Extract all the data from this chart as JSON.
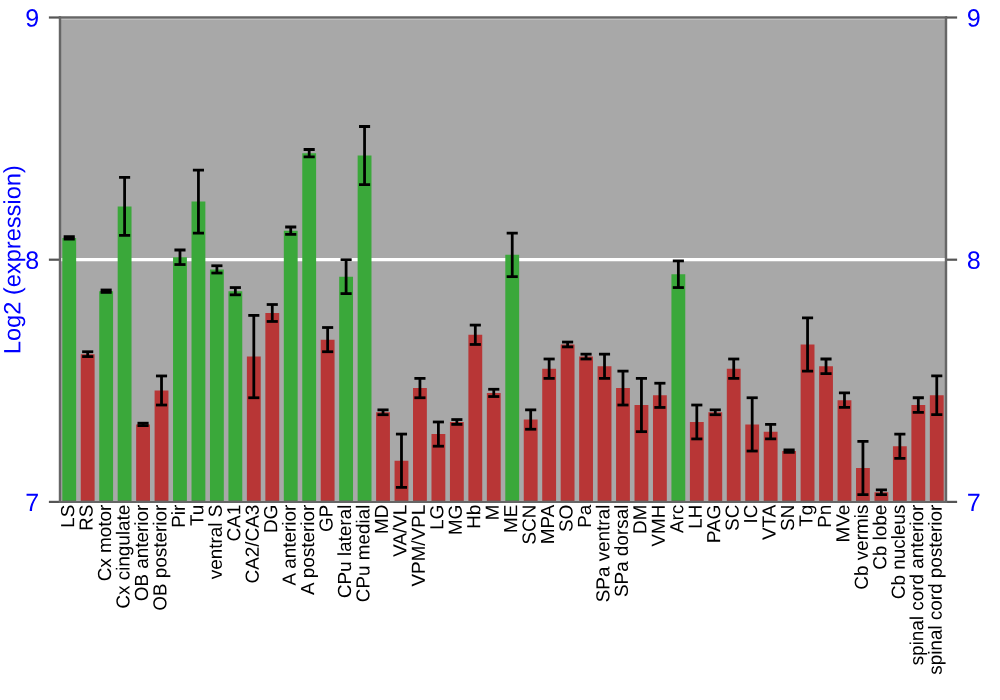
{
  "chart_data": {
    "type": "bar",
    "ylabel": "Log2 (expression)",
    "categories": [
      "LS",
      "RS",
      "Cx motor",
      "Cx cingulate",
      "OB anterior",
      "OB posterior",
      "Pir",
      "Tu",
      "ventral S",
      "CA1",
      "CA2/CA3",
      "DG",
      "A anterior",
      "A posterior",
      "GP",
      "CPu lateral",
      "CPu medial",
      "MD",
      "VA/VL",
      "VPM/VPL",
      "LG",
      "MG",
      "Hb",
      "M",
      "ME",
      "SCN",
      "MPA",
      "SO",
      "Pa",
      "SPa ventral",
      "SPa dorsal",
      "DM",
      "VMH",
      "Arc",
      "LH",
      "PAG",
      "SC",
      "IC",
      "VTA",
      "SN",
      "Tg",
      "Pn",
      "MVe",
      "Cb vermis",
      "Cb lobe",
      "Cb nucleus",
      "spinal cord anterior",
      "spinal cord posterior"
    ],
    "values": [
      8.09,
      7.61,
      7.87,
      8.22,
      7.32,
      7.46,
      8.01,
      8.24,
      7.96,
      7.87,
      7.6,
      7.78,
      8.12,
      8.44,
      7.67,
      7.93,
      8.43,
      7.37,
      7.17,
      7.47,
      7.28,
      7.33,
      7.69,
      7.45,
      8.02,
      7.34,
      7.55,
      7.65,
      7.6,
      7.56,
      7.47,
      7.4,
      7.44,
      7.94,
      7.33,
      7.37,
      7.55,
      7.32,
      7.29,
      7.21,
      7.65,
      7.56,
      7.42,
      7.14,
      7.04,
      7.23,
      7.4,
      7.44
    ],
    "errors": [
      0.005,
      0.01,
      0.005,
      0.12,
      0.005,
      0.06,
      0.03,
      0.13,
      0.015,
      0.015,
      0.17,
      0.035,
      0.015,
      0.015,
      0.05,
      0.07,
      0.12,
      0.01,
      0.11,
      0.04,
      0.05,
      0.01,
      0.04,
      0.015,
      0.09,
      0.04,
      0.04,
      0.01,
      0.01,
      0.05,
      0.07,
      0.11,
      0.05,
      0.055,
      0.07,
      0.01,
      0.04,
      0.11,
      0.03,
      0.005,
      0.11,
      0.03,
      0.03,
      0.11,
      0.01,
      0.05,
      0.03,
      0.08
    ],
    "colors": [
      "#3aa83a",
      "#b83636",
      "#3aa83a",
      "#3aa83a",
      "#b83636",
      "#b83636",
      "#3aa83a",
      "#3aa83a",
      "#3aa83a",
      "#3aa83a",
      "#b83636",
      "#b83636",
      "#3aa83a",
      "#3aa83a",
      "#b83636",
      "#3aa83a",
      "#3aa83a",
      "#b83636",
      "#b83636",
      "#b83636",
      "#b83636",
      "#b83636",
      "#b83636",
      "#b83636",
      "#3aa83a",
      "#b83636",
      "#b83636",
      "#b83636",
      "#b83636",
      "#b83636",
      "#b83636",
      "#b83636",
      "#b83636",
      "#3aa83a",
      "#b83636",
      "#b83636",
      "#b83636",
      "#b83636",
      "#b83636",
      "#b83636",
      "#b83636",
      "#b83636",
      "#b83636",
      "#b83636",
      "#b83636",
      "#b83636",
      "#b83636",
      "#b83636"
    ],
    "ylim": [
      7,
      9
    ],
    "yticks": [
      7,
      8,
      9
    ],
    "y2lim": [
      7,
      9
    ],
    "y2ticks": [
      7,
      8,
      9
    ],
    "grid": "y"
  }
}
